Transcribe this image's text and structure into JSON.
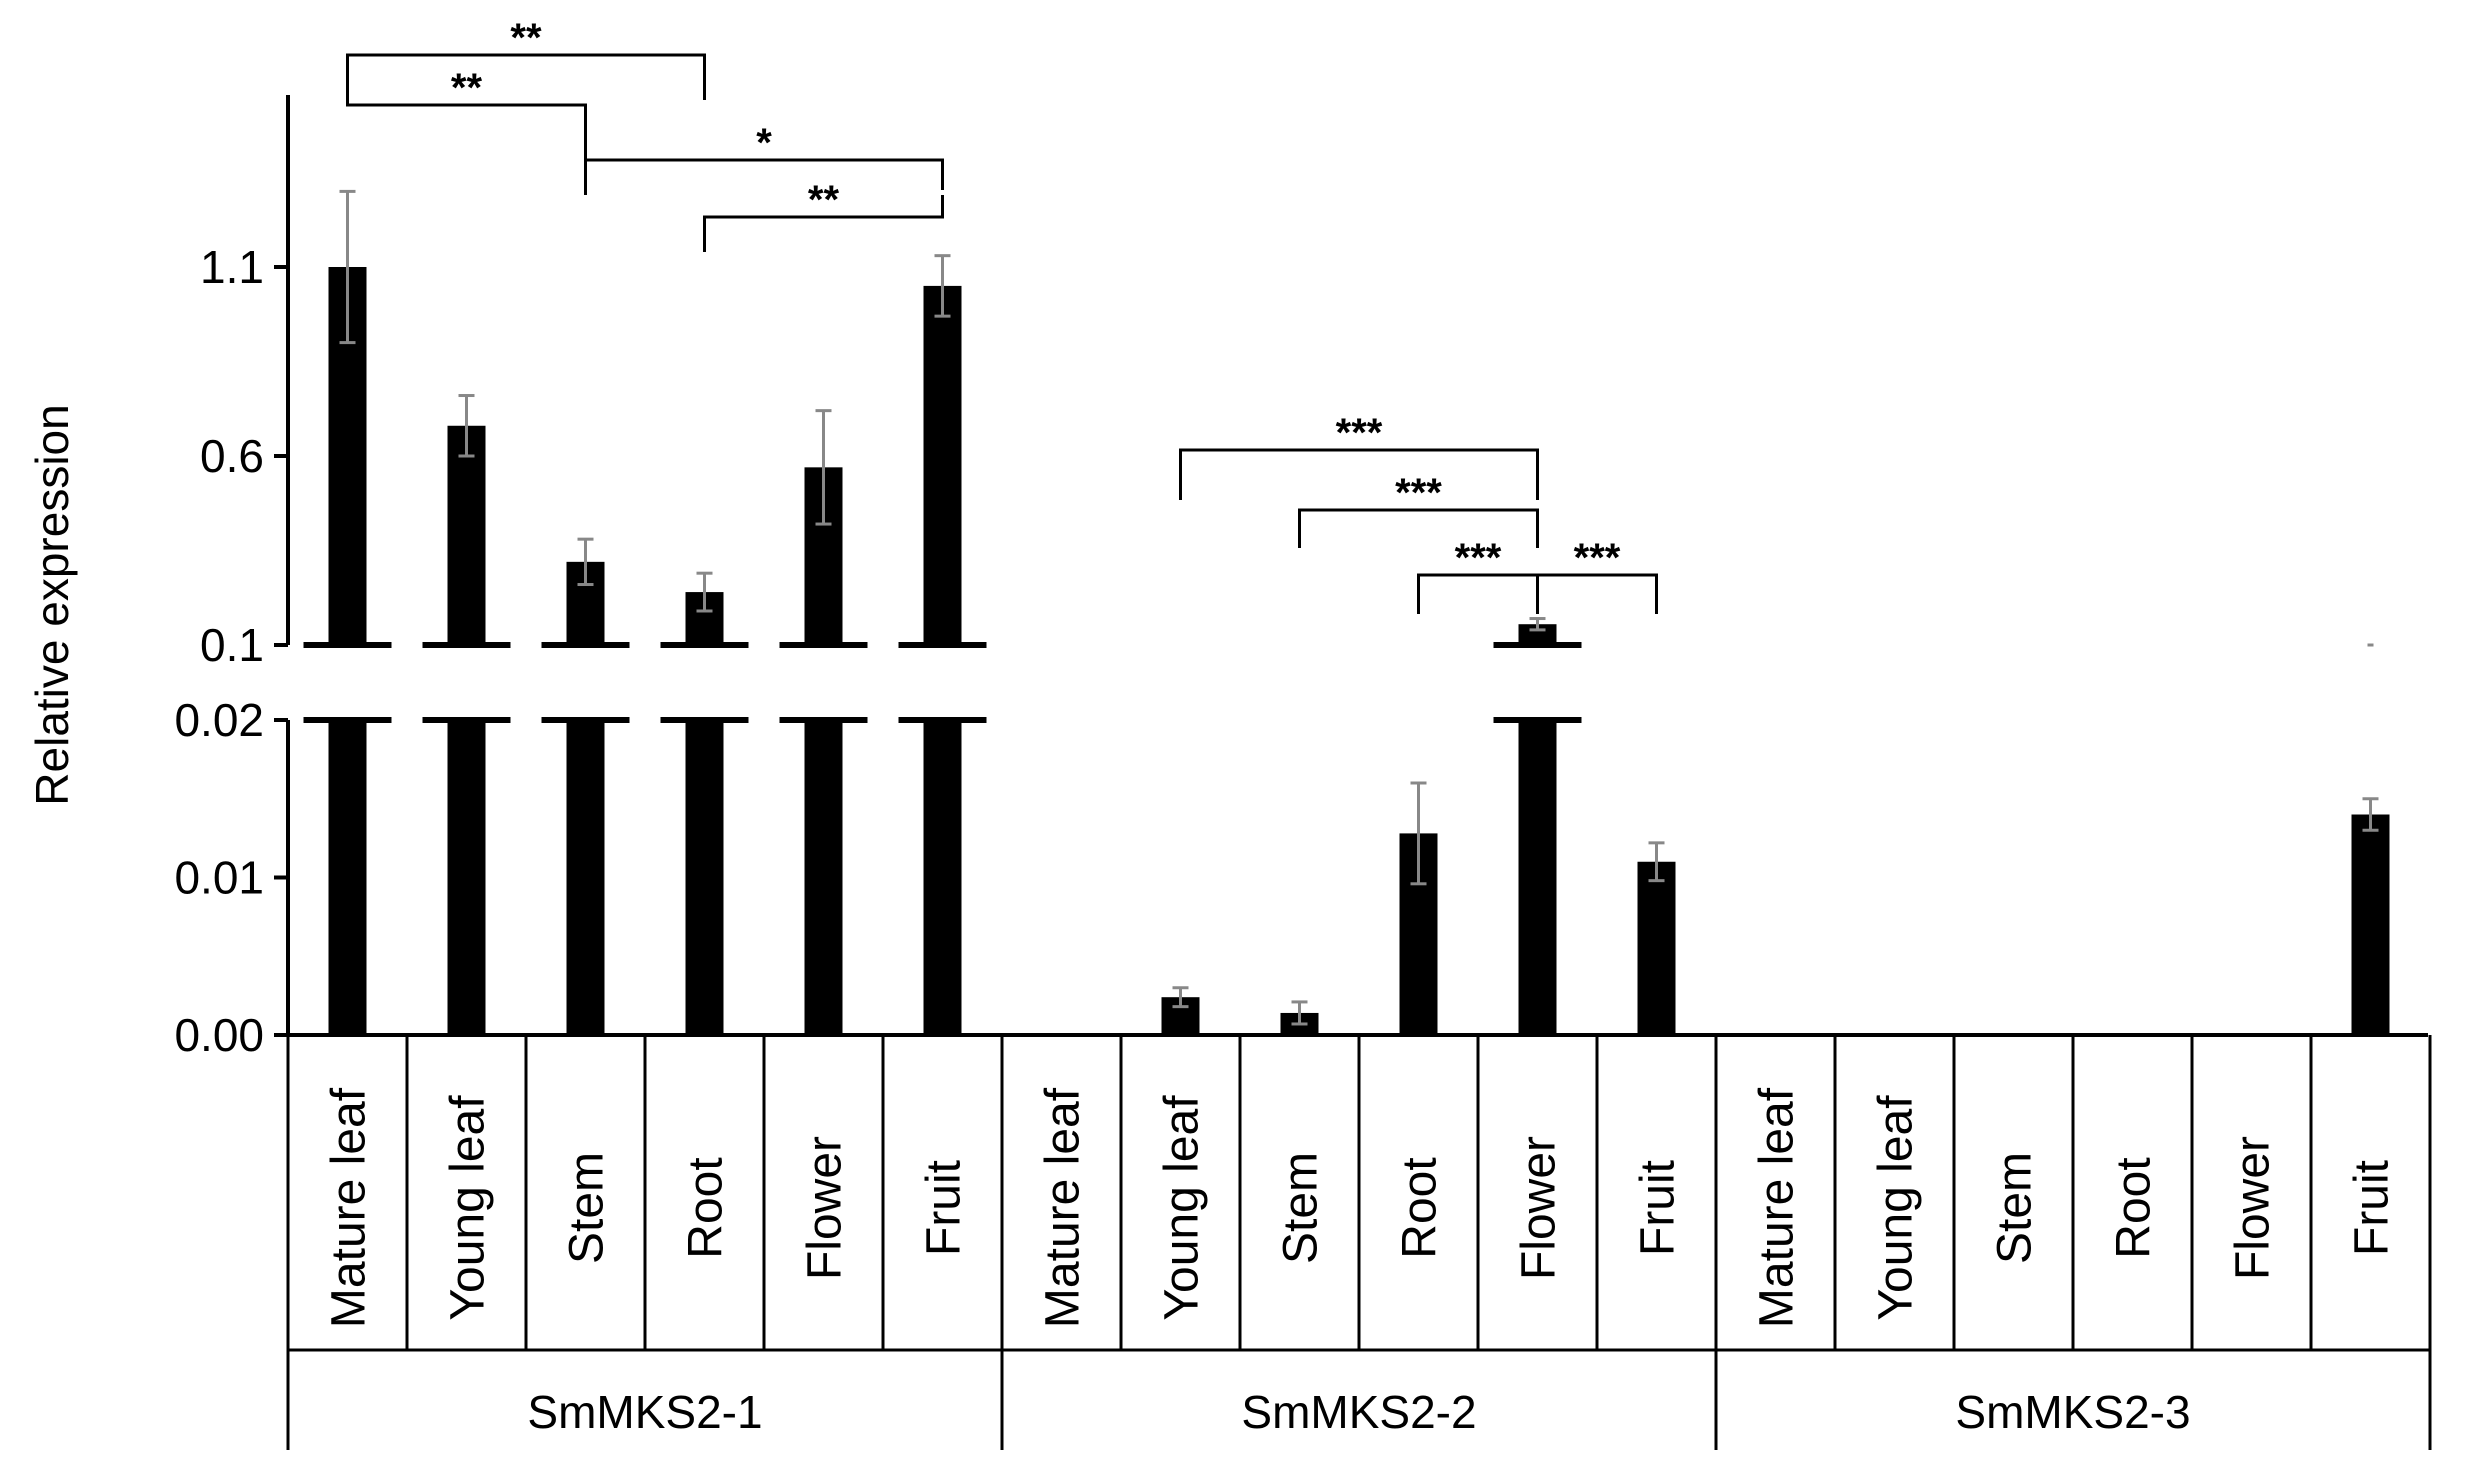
{
  "chart_data": {
    "type": "bar",
    "ylabel": "Relative expression",
    "y_axis": {
      "broken": true,
      "lower_segment": {
        "range": [
          0,
          0.02
        ],
        "ticks": [
          "0.00",
          "0.01",
          "0.02"
        ]
      },
      "upper_segment": {
        "range": [
          0.1,
          1.45
        ],
        "ticks": [
          "0.1",
          "0.6",
          "1.1"
        ]
      }
    },
    "groups": [
      {
        "name": "SmMKS2-1",
        "categories": [
          "Mature leaf",
          "Young leaf",
          "Stem",
          "Root",
          "Flower",
          "Fruit"
        ],
        "values": [
          1.1,
          0.68,
          0.32,
          0.24,
          0.57,
          1.05
        ],
        "errors": [
          0.2,
          0.08,
          0.06,
          0.05,
          0.15,
          0.08
        ],
        "significance": [
          {
            "from": 0,
            "to": 3,
            "label": "**"
          },
          {
            "from": 0,
            "to": 2,
            "label": "**"
          },
          {
            "from": 2,
            "to": 5,
            "label": "*"
          },
          {
            "from": 3,
            "to": 5,
            "label": "**"
          }
        ]
      },
      {
        "name": "SmMKS2-2",
        "categories": [
          "Mature leaf",
          "Young leaf",
          "Stem",
          "Root",
          "Flower",
          "Fruit"
        ],
        "values": [
          0,
          0.0024,
          0.0014,
          0.0128,
          0.155,
          0.011
        ],
        "errors": [
          0,
          0.0006,
          0.0007,
          0.0032,
          0.015,
          0.0012
        ],
        "significance": [
          {
            "from": 1,
            "to": 4,
            "label": "***"
          },
          {
            "from": 2,
            "to": 4,
            "label": "***"
          },
          {
            "from": 3,
            "to": 4,
            "label": "***"
          },
          {
            "from": 4,
            "to": 5,
            "label": "***"
          }
        ]
      },
      {
        "name": "SmMKS2-3",
        "categories": [
          "Mature leaf",
          "Young leaf",
          "Stem",
          "Root",
          "Flower",
          "Fruit"
        ],
        "values": [
          0,
          0,
          0,
          0,
          0,
          0.014
        ],
        "errors": [
          0,
          0,
          0,
          0,
          0,
          0.001
        ],
        "significance": []
      }
    ]
  }
}
